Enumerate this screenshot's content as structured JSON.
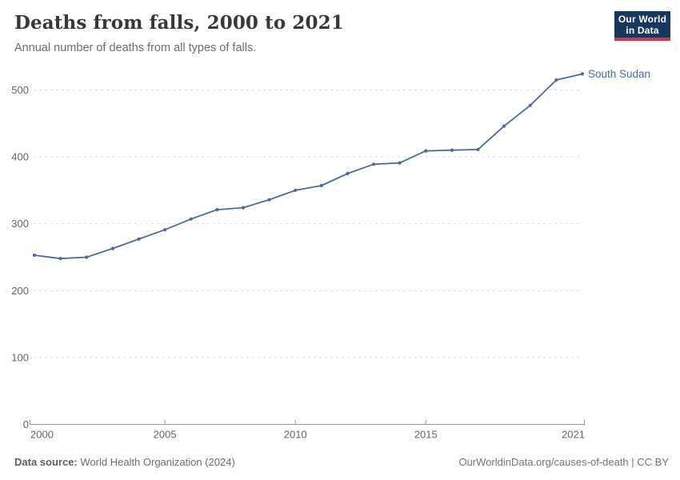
{
  "header": {
    "title": "Deaths from falls, 2000 to 2021",
    "subtitle": "Annual number of deaths from all types of falls.",
    "logo": {
      "line1": "Our World",
      "line2": "in Data",
      "bg_color": "#18375f",
      "bar_color": "#d0374a"
    }
  },
  "chart_data": {
    "type": "line",
    "title": "Deaths from falls, 2000 to 2021",
    "x": [
      2000,
      2001,
      2002,
      2003,
      2004,
      2005,
      2006,
      2007,
      2008,
      2009,
      2010,
      2011,
      2012,
      2013,
      2014,
      2015,
      2016,
      2017,
      2018,
      2019,
      2020,
      2021
    ],
    "series": [
      {
        "name": "South Sudan",
        "color": "#4C6A9C",
        "values": [
          253,
          248,
          250,
          263,
          277,
          291,
          307,
          321,
          324,
          336,
          350,
          357,
          375,
          389,
          391,
          409,
          410,
          411,
          446,
          477,
          515,
          524
        ]
      }
    ],
    "end_label": "South Sudan",
    "x_tick_years": [
      2000,
      2005,
      2010,
      2015,
      2021
    ],
    "x_tick_labels": [
      "2000",
      "2005",
      "2010",
      "2015",
      "2021"
    ],
    "y_ticks": [
      0,
      100,
      200,
      300,
      400,
      500
    ],
    "xlim": [
      2000,
      2021
    ],
    "ylim": [
      0,
      540
    ],
    "grid": "horizontal-dashed",
    "grid_color": "#dcdcdc",
    "axis_color": "#999999",
    "tick_label_color": "#666666",
    "legend_position": "end-of-line",
    "marker": "circle"
  },
  "footer": {
    "source_label": "Data source:",
    "source_value": "World Health Organization (2024)",
    "license_text": "OurWorldinData.org/causes-of-death | CC BY"
  }
}
